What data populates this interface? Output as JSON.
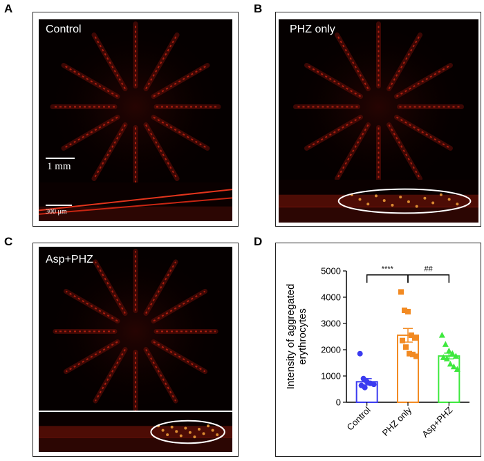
{
  "panels": {
    "A": {
      "label": "A",
      "title": "Control",
      "scale_main": "1 mm",
      "scale_cross": "300 μm"
    },
    "B": {
      "label": "B",
      "title": "PHZ only"
    },
    "C": {
      "label": "C",
      "title": "Asp+PHZ"
    },
    "D": {
      "label": "D"
    }
  },
  "colors": {
    "control": "#3b3bf0",
    "phz": "#f28a22",
    "asp": "#3ee83e",
    "ellipse": "#ffffff"
  },
  "chart_data": {
    "type": "bar",
    "title": "",
    "xlabel": "",
    "ylabel": "Intensity of aggregated erythrocytes",
    "ylabel_lines": [
      "Intensity of aggregated",
      "erythrocytes"
    ],
    "categories": [
      "Control",
      "PHZ only",
      "Asp+PHZ"
    ],
    "values": [
      780,
      2550,
      1760
    ],
    "errors": [
      120,
      260,
      110
    ],
    "points": [
      [
        1850,
        900,
        780,
        720,
        680,
        640,
        560
      ],
      [
        4200,
        3500,
        3450,
        2550,
        2450,
        2350,
        2100,
        1850,
        1820,
        1750
      ],
      [
        2550,
        2200,
        1950,
        1850,
        1750,
        1700,
        1650,
        1450,
        1350,
        1250
      ]
    ],
    "markers": [
      "circle",
      "square",
      "triangle"
    ],
    "ylim": [
      0,
      5000
    ],
    "yticks": [
      0,
      1000,
      2000,
      3000,
      4000,
      5000
    ],
    "ytick_labels": [
      "0",
      "1000",
      "2000",
      "3000",
      "4000",
      "5000"
    ],
    "annotations": [
      {
        "text": "****",
        "from": 0,
        "to": 1
      },
      {
        "text": "##",
        "from": 1,
        "to": 2
      }
    ]
  }
}
